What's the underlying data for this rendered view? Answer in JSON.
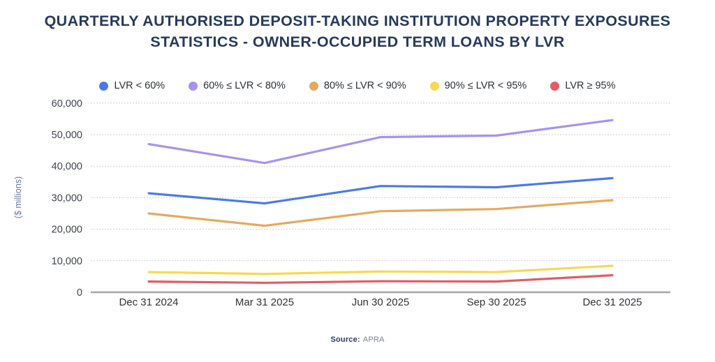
{
  "page": {
    "title_line1": "QUARTERLY AUTHORISED DEPOSIT-TAKING INSTITUTION PROPERTY EXPOSURES",
    "title_line2": "STATISTICS - OWNER-OCCUPIED TERM LOANS BY LVR",
    "footer": {
      "source_label": "Source:",
      "source_value": "APRA"
    }
  },
  "colors": {
    "title_navy": "#263A5C",
    "series_blue": "#4A7AE6",
    "series_purple": "#A793EF",
    "series_orange": "#E6A95F",
    "series_yellow": "#F8D854",
    "series_red": "#E25C63"
  },
  "chart_data": {
    "type": "line",
    "title": "QUARTERLY AUTHORISED DEPOSIT-TAKING INSTITUTION PROPERTY EXPOSURES STATISTICS - OWNER-OCCUPIED TERM LOANS BY LVR",
    "categories": [
      "Dec 31 2024",
      "Mar 31 2025",
      "Jun 30 2025",
      "Sep 30 2025",
      "Dec 31 2025"
    ],
    "series": [
      {
        "name": "LVR < 60%",
        "color": "#4A7AE6",
        "values": [
          31400,
          28200,
          33700,
          33300,
          36200
        ]
      },
      {
        "name": "60% ≤ LVR < 80%",
        "color": "#A793EF",
        "values": [
          47000,
          41000,
          49200,
          49700,
          54600
        ]
      },
      {
        "name": "80% ≤ LVR < 90%",
        "color": "#E6A95F",
        "values": [
          25000,
          21100,
          25700,
          26400,
          29200
        ]
      },
      {
        "name": "90% ≤ LVR < 95%",
        "color": "#F8D854",
        "values": [
          6400,
          5800,
          6600,
          6400,
          8400
        ]
      },
      {
        "name": "LVR ≥ 95%",
        "color": "#E25C63",
        "values": [
          3400,
          3000,
          3500,
          3400,
          5400
        ]
      }
    ],
    "xlabel": "",
    "ylabel": "($ millions)",
    "yticks": [
      0,
      10000,
      20000,
      30000,
      40000,
      50000,
      60000
    ],
    "ylim": [
      0,
      62000
    ],
    "grid": true,
    "legend_position": "top",
    "source": "APRA"
  }
}
